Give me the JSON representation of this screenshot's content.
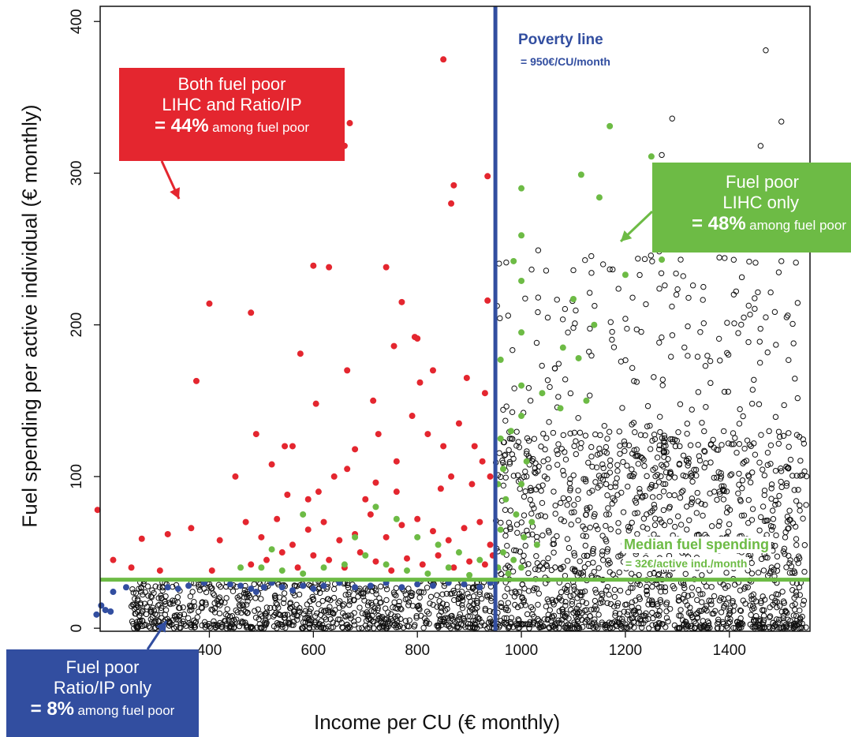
{
  "colors": {
    "red": "#e4262f",
    "green": "#6dbb45",
    "blue": "#324ea0",
    "black": "#111111"
  },
  "chart_data": {
    "type": "scatter",
    "xlabel": "Income per CU (€ monthly)",
    "ylabel": "Fuel spending per active individual (€ monthly)",
    "xlim": [
      190,
      1555
    ],
    "ylim": [
      -2,
      410
    ],
    "x_ticks": [
      400,
      600,
      800,
      1000,
      1200,
      1400
    ],
    "y_ticks": [
      0,
      100,
      200,
      300,
      400
    ],
    "grid": false,
    "reference_lines": [
      {
        "orientation": "vertical",
        "value": 950,
        "label": "Poverty line",
        "sublabel": "= 950€/CU/month",
        "color": "#324ea0"
      },
      {
        "orientation": "horizontal",
        "value": 32,
        "label": "Median fuel spending",
        "sublabel": "= 32€/active ind./month",
        "color": "#6dbb45"
      }
    ],
    "series": [
      {
        "group": "fuel poor LIHC and Ratio/IP",
        "color": "#e4262f",
        "points": [
          [
            850,
            375
          ],
          [
            870,
            292
          ],
          [
            865,
            280
          ],
          [
            935,
            298
          ],
          [
            670,
            333
          ],
          [
            660,
            318
          ],
          [
            600,
            239
          ],
          [
            630,
            238
          ],
          [
            400,
            214
          ],
          [
            480,
            208
          ],
          [
            740,
            238
          ],
          [
            770,
            215
          ],
          [
            795,
            192
          ],
          [
            800,
            191
          ],
          [
            935,
            216
          ],
          [
            375,
            163
          ],
          [
            575,
            181
          ],
          [
            665,
            170
          ],
          [
            450,
            100
          ],
          [
            605,
            148
          ],
          [
            490,
            128
          ],
          [
            545,
            120
          ],
          [
            715,
            150
          ],
          [
            755,
            186
          ],
          [
            805,
            162
          ],
          [
            830,
            170
          ],
          [
            895,
            165
          ],
          [
            930,
            155
          ],
          [
            185,
            78
          ],
          [
            270,
            59
          ],
          [
            320,
            62
          ],
          [
            365,
            66
          ],
          [
            215,
            45
          ],
          [
            305,
            38
          ],
          [
            420,
            58
          ],
          [
            250,
            40
          ],
          [
            405,
            38
          ],
          [
            520,
            108
          ],
          [
            560,
            120
          ],
          [
            590,
            85
          ],
          [
            640,
            100
          ],
          [
            680,
            118
          ],
          [
            720,
            96
          ],
          [
            760,
            110
          ],
          [
            790,
            140
          ],
          [
            820,
            128
          ],
          [
            850,
            120
          ],
          [
            880,
            135
          ],
          [
            910,
            120
          ],
          [
            470,
            70
          ],
          [
            500,
            60
          ],
          [
            530,
            72
          ],
          [
            560,
            55
          ],
          [
            590,
            65
          ],
          [
            620,
            70
          ],
          [
            650,
            58
          ],
          [
            680,
            62
          ],
          [
            710,
            75
          ],
          [
            740,
            60
          ],
          [
            770,
            68
          ],
          [
            800,
            72
          ],
          [
            830,
            64
          ],
          [
            860,
            58
          ],
          [
            890,
            66
          ],
          [
            920,
            70
          ],
          [
            940,
            55
          ],
          [
            480,
            42
          ],
          [
            510,
            45
          ],
          [
            540,
            50
          ],
          [
            570,
            40
          ],
          [
            600,
            48
          ],
          [
            630,
            45
          ],
          [
            660,
            40
          ],
          [
            690,
            50
          ],
          [
            720,
            44
          ],
          [
            750,
            38
          ],
          [
            780,
            46
          ],
          [
            810,
            42
          ],
          [
            840,
            48
          ],
          [
            870,
            40
          ],
          [
            900,
            44
          ],
          [
            930,
            42
          ],
          [
            945,
            48
          ],
          [
            550,
            88
          ],
          [
            610,
            90
          ],
          [
            700,
            85
          ],
          [
            760,
            90
          ],
          [
            845,
            92
          ],
          [
            905,
            95
          ],
          [
            940,
            100
          ],
          [
            665,
            105
          ],
          [
            725,
            128
          ],
          [
            865,
            100
          ],
          [
            925,
            110
          ]
        ]
      },
      {
        "group": "fuel poor LIHC only",
        "color": "#6dbb45",
        "points": [
          [
            1170,
            331
          ],
          [
            1250,
            311
          ],
          [
            1115,
            299
          ],
          [
            1150,
            284
          ],
          [
            1000,
            290
          ],
          [
            1000,
            259
          ],
          [
            985,
            242
          ],
          [
            1000,
            229
          ],
          [
            1200,
            233
          ],
          [
            1270,
            243
          ],
          [
            1100,
            217
          ],
          [
            1140,
            200
          ],
          [
            1000,
            195
          ],
          [
            960,
            177
          ],
          [
            1080,
            185
          ],
          [
            1040,
            155
          ],
          [
            1000,
            160
          ],
          [
            980,
            130
          ],
          [
            1010,
            110
          ],
          [
            1000,
            95
          ],
          [
            970,
            85
          ],
          [
            990,
            75
          ],
          [
            1020,
            70
          ],
          [
            1005,
            60
          ],
          [
            1030,
            55
          ],
          [
            965,
            50
          ],
          [
            985,
            45
          ],
          [
            955,
            40
          ],
          [
            1000,
            40
          ],
          [
            975,
            36
          ],
          [
            960,
            125
          ],
          [
            965,
            105
          ],
          [
            955,
            95
          ],
          [
            960,
            65
          ],
          [
            1000,
            140
          ],
          [
            1110,
            178
          ],
          [
            1125,
            150
          ],
          [
            1075,
            145
          ],
          [
            720,
            80
          ],
          [
            760,
            72
          ],
          [
            800,
            60
          ],
          [
            840,
            55
          ],
          [
            880,
            50
          ],
          [
            920,
            45
          ],
          [
            700,
            48
          ],
          [
            740,
            42
          ],
          [
            780,
            38
          ],
          [
            820,
            36
          ],
          [
            860,
            40
          ],
          [
            900,
            35
          ],
          [
            660,
            42
          ],
          [
            620,
            40
          ],
          [
            580,
            36
          ],
          [
            540,
            38
          ],
          [
            500,
            40
          ],
          [
            460,
            40
          ],
          [
            520,
            52
          ],
          [
            580,
            75
          ],
          [
            680,
            60
          ]
        ]
      },
      {
        "group": "fuel poor Ratio/IP only",
        "color": "#324ea0",
        "points": [
          [
            183,
            9
          ],
          [
            192,
            15
          ],
          [
            200,
            12
          ],
          [
            210,
            11
          ],
          [
            215,
            24
          ],
          [
            240,
            27
          ],
          [
            320,
            27
          ],
          [
            340,
            26
          ],
          [
            360,
            28
          ],
          [
            390,
            30
          ],
          [
            440,
            29
          ],
          [
            460,
            28
          ],
          [
            480,
            26
          ],
          [
            490,
            24
          ],
          [
            505,
            27
          ],
          [
            520,
            30
          ],
          [
            540,
            27
          ],
          [
            560,
            25
          ],
          [
            580,
            28
          ],
          [
            600,
            26
          ],
          [
            620,
            28
          ],
          [
            650,
            30
          ],
          [
            680,
            27
          ],
          [
            710,
            28
          ],
          [
            740,
            30
          ],
          [
            770,
            27
          ],
          [
            800,
            29
          ],
          [
            830,
            28
          ],
          [
            860,
            30
          ],
          [
            890,
            29
          ],
          [
            920,
            27
          ],
          [
            940,
            30
          ]
        ]
      }
    ],
    "background_sample": {
      "group": "not fuel poor",
      "color": "#111111",
      "marker": "open circle"
    }
  },
  "annotations": {
    "red_box": {
      "line1": "Both fuel poor",
      "line2": "LIHC and Ratio/IP",
      "pct": "= 44%",
      "tail": "among fuel poor"
    },
    "green_box": {
      "line1": "Fuel poor",
      "line2": "LIHC only",
      "pct": "= 48%",
      "tail": "among fuel poor"
    },
    "blue_box": {
      "line1": "Fuel poor",
      "line2": "Ratio/IP only",
      "pct": "= 8%",
      "tail": "among fuel poor"
    }
  }
}
